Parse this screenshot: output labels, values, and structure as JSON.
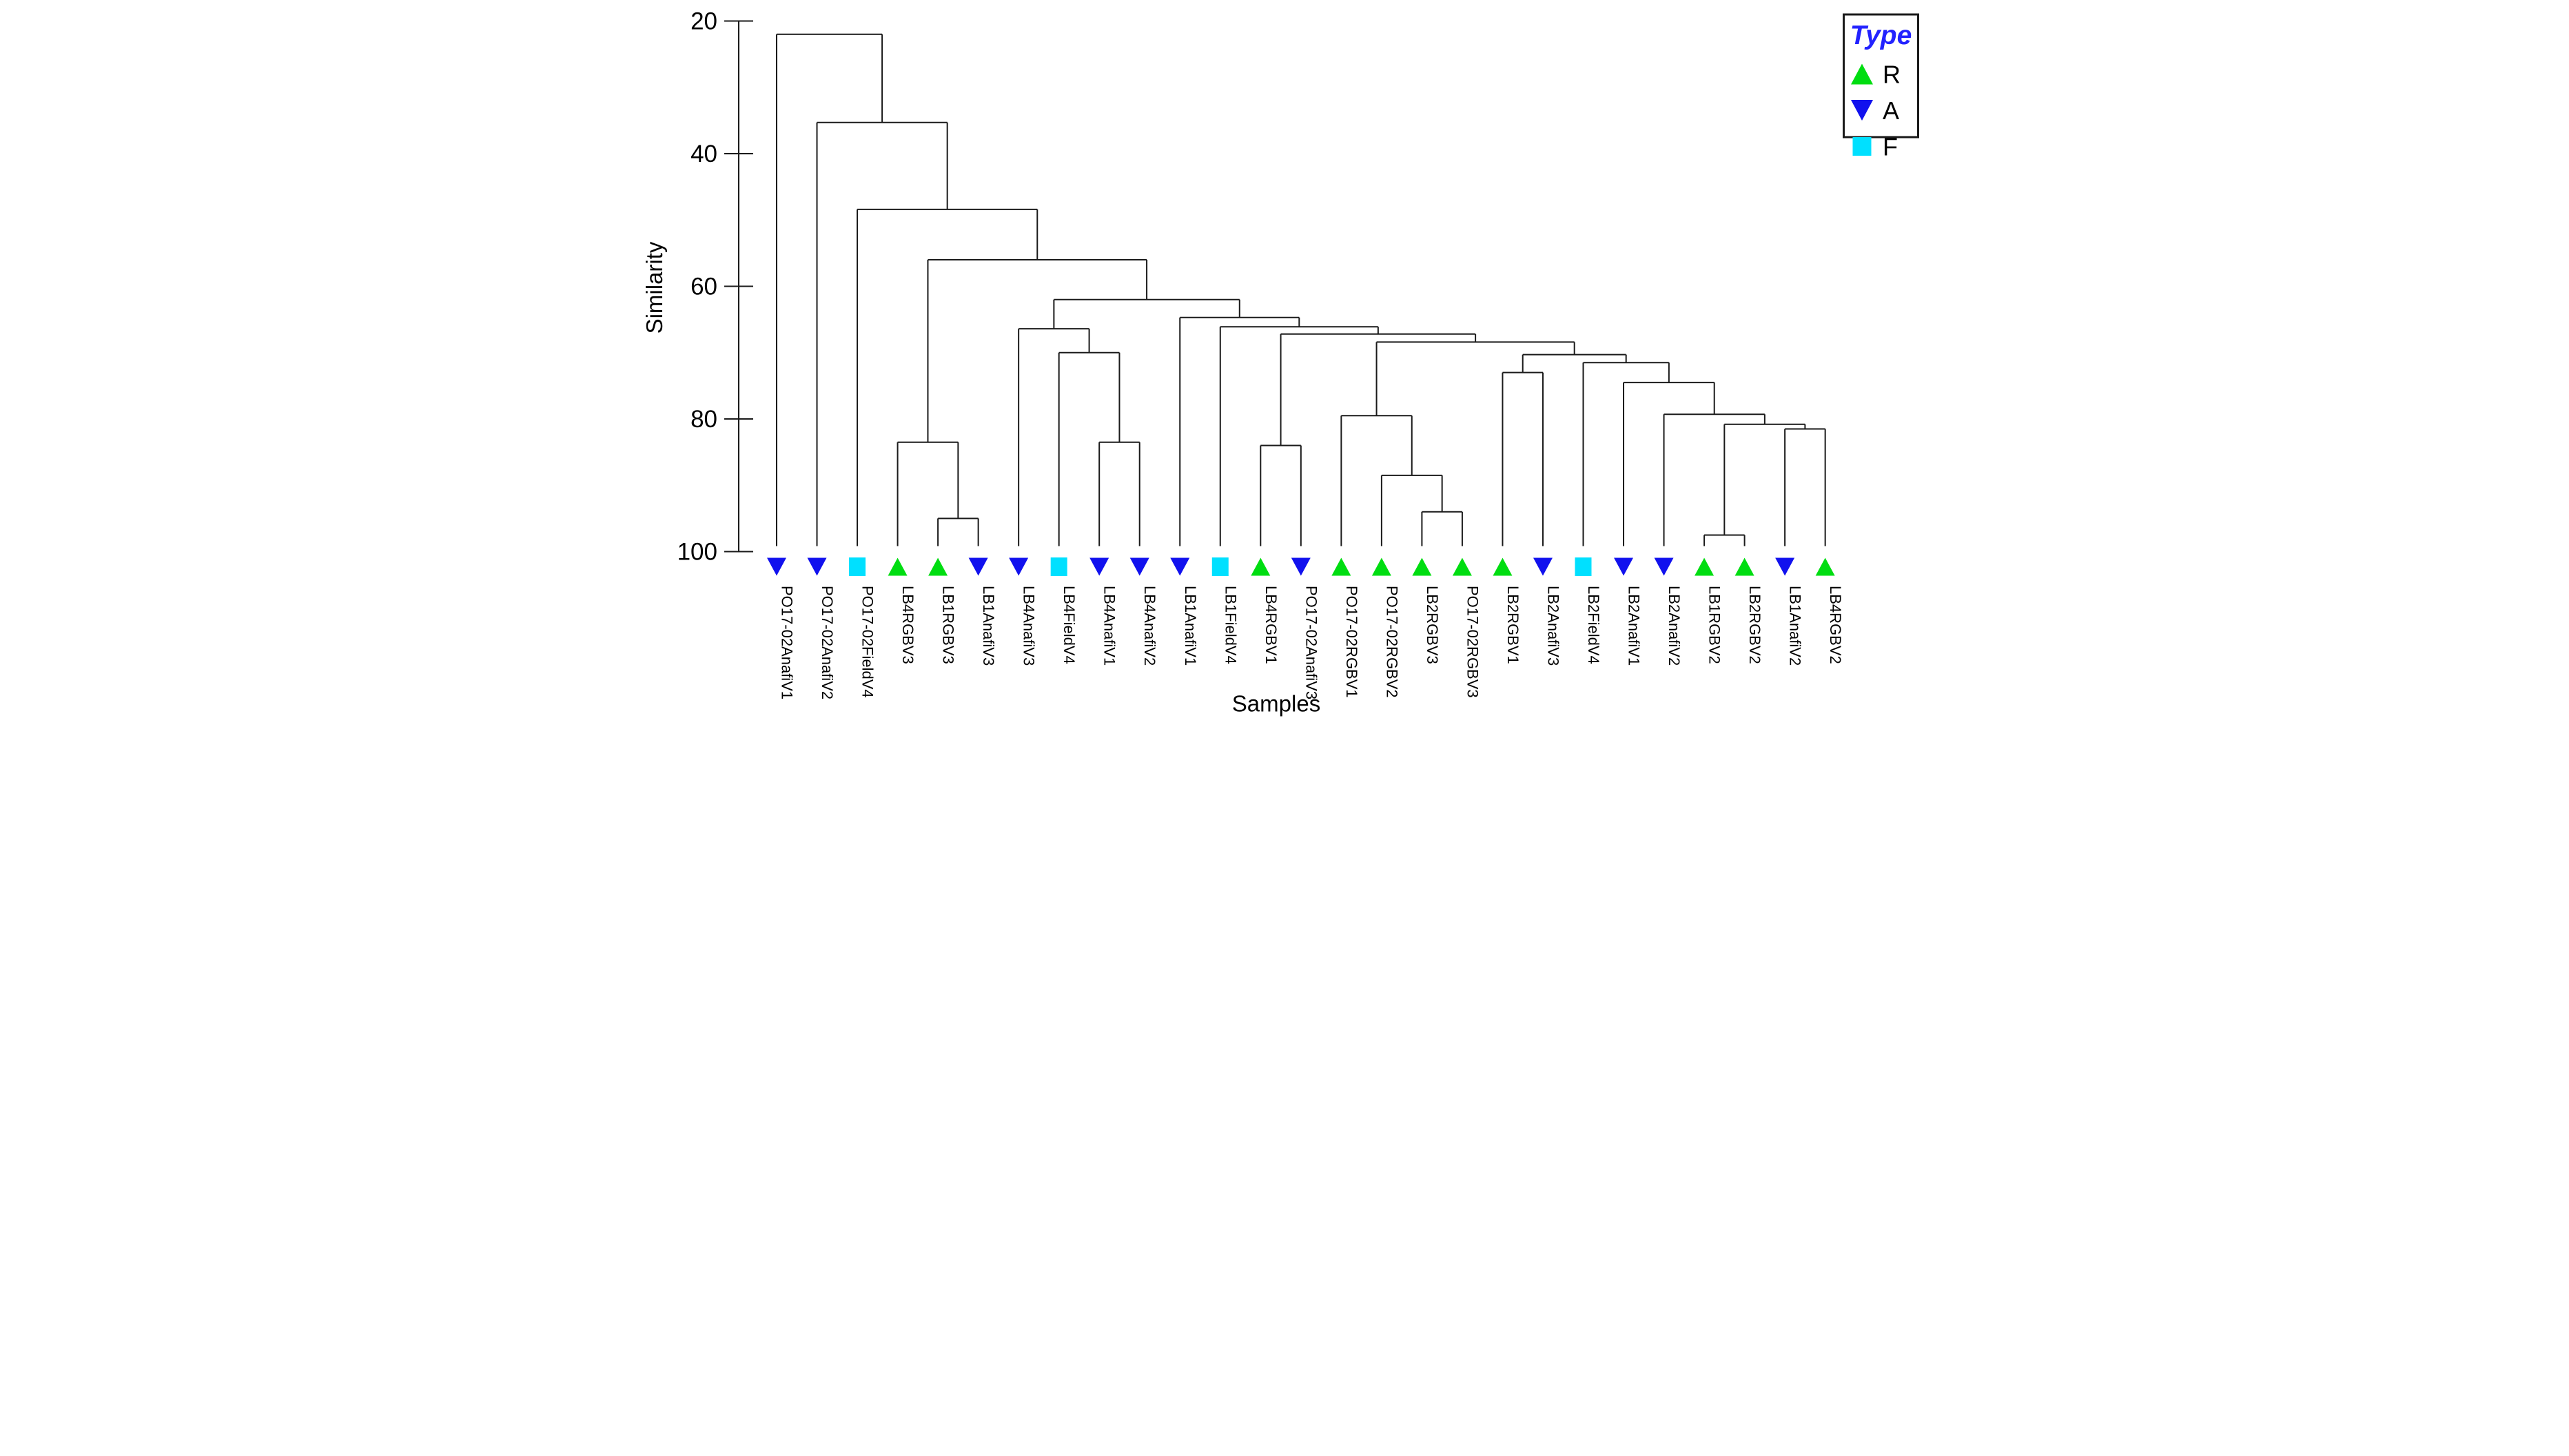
{
  "colors": {
    "line": "#1a1a1a",
    "marker_R": "#00dd11",
    "marker_A": "#1111ee",
    "marker_F": "#00e0ff",
    "legend_title": "#2222ff",
    "text": "#000000"
  },
  "axis": {
    "y": {
      "label": "Similarity",
      "ticks": [
        20,
        40,
        60,
        80,
        100
      ],
      "min": 20,
      "max": 100
    },
    "x": {
      "label": "Samples"
    }
  },
  "legend": {
    "title": "Type",
    "items": [
      {
        "label": "R",
        "marker": "triangle-up",
        "color": "#00dd11"
      },
      {
        "label": "A",
        "marker": "triangle-down",
        "color": "#1111ee"
      },
      {
        "label": "F",
        "marker": "square",
        "color": "#00e0ff"
      }
    ]
  },
  "chart_data": {
    "type": "dendrogram",
    "orientation": "top-down",
    "ylabel": "Similarity",
    "xlabel": "Samples",
    "ylim": [
      20,
      100
    ],
    "grid": false,
    "legend_position": "top-right",
    "leaves": [
      {
        "label": "PO17-02AnafiV1",
        "type": "A"
      },
      {
        "label": "PO17-02AnafiV2",
        "type": "A"
      },
      {
        "label": "PO17-02FieldV4",
        "type": "F"
      },
      {
        "label": "LB4RGBV3",
        "type": "R"
      },
      {
        "label": "LB1RGBV3",
        "type": "R"
      },
      {
        "label": "LB1AnafiV3",
        "type": "A"
      },
      {
        "label": "LB4AnafiV3",
        "type": "A"
      },
      {
        "label": "LB4FieldV4",
        "type": "F"
      },
      {
        "label": "LB4AnafiV1",
        "type": "A"
      },
      {
        "label": "LB4AnafiV2",
        "type": "A"
      },
      {
        "label": "LB1AnafiV1",
        "type": "A"
      },
      {
        "label": "LB1FieldV4",
        "type": "F"
      },
      {
        "label": "LB4RGBV1",
        "type": "R"
      },
      {
        "label": "PO17-02AnafiV3",
        "type": "A"
      },
      {
        "label": "PO17-02RGBV1",
        "type": "R"
      },
      {
        "label": "PO17-02RGBV2",
        "type": "R"
      },
      {
        "label": "LB2RGBV3",
        "type": "R"
      },
      {
        "label": "PO17-02RGBV3",
        "type": "R"
      },
      {
        "label": "LB2RGBV1",
        "type": "R"
      },
      {
        "label": "LB2AnafiV3",
        "type": "A"
      },
      {
        "label": "LB2FieldV4",
        "type": "F"
      },
      {
        "label": "LB2AnafiV1",
        "type": "A"
      },
      {
        "label": "LB2AnafiV2",
        "type": "A"
      },
      {
        "label": "LB1RGBV2",
        "type": "R"
      },
      {
        "label": "LB2RGBV2",
        "type": "R"
      },
      {
        "label": "LB1AnafiV2",
        "type": "A"
      },
      {
        "label": "LB4RGBV2",
        "type": "R"
      }
    ],
    "merges": [
      {
        "id": "n_ee",
        "children": [
          4,
          5
        ],
        "similarity": 95.0
      },
      {
        "id": "n_e",
        "children": [
          3,
          "n_ee"
        ],
        "similarity": 83.5
      },
      {
        "id": "n_j",
        "children": [
          8,
          9
        ],
        "similarity": 83.5
      },
      {
        "id": "n_i",
        "children": [
          7,
          "n_j"
        ],
        "similarity": 70.0
      },
      {
        "id": "n_h",
        "children": [
          6,
          "n_i"
        ],
        "similarity": 66.4
      },
      {
        "id": "n_ll",
        "children": [
          12,
          13
        ],
        "similarity": 84.0
      },
      {
        "id": "n_m",
        "children": [
          16,
          17
        ],
        "similarity": 94.0
      },
      {
        "id": "n_n",
        "children": [
          15,
          "n_m"
        ],
        "similarity": 88.5
      },
      {
        "id": "n_o",
        "children": [
          14,
          "n_n"
        ],
        "similarity": 79.5
      },
      {
        "id": "n_w",
        "children": [
          18,
          19
        ],
        "similarity": 73.0
      },
      {
        "id": "n_u",
        "children": [
          23,
          24
        ],
        "similarity": 97.5
      },
      {
        "id": "n_t",
        "children": [
          25,
          26
        ],
        "similarity": 81.5
      },
      {
        "id": "n_s",
        "children": [
          "n_u",
          "n_t"
        ],
        "similarity": 80.8
      },
      {
        "id": "n_r",
        "children": [
          22,
          "n_s"
        ],
        "similarity": 79.3
      },
      {
        "id": "n_q",
        "children": [
          21,
          "n_r"
        ],
        "similarity": 74.5
      },
      {
        "id": "n_qq",
        "children": [
          20,
          "n_q"
        ],
        "similarity": 71.5
      },
      {
        "id": "n_zz",
        "children": [
          "n_w",
          "n_qq"
        ],
        "similarity": 70.3
      },
      {
        "id": "n_yy",
        "children": [
          "n_o",
          "n_zz"
        ],
        "similarity": 68.4
      },
      {
        "id": "n_kk",
        "children": [
          "n_ll",
          "n_yy"
        ],
        "similarity": 67.2
      },
      {
        "id": "n_k",
        "children": [
          11,
          "n_kk"
        ],
        "similarity": 66.1
      },
      {
        "id": "n_g",
        "children": [
          10,
          "n_k"
        ],
        "similarity": 64.7
      },
      {
        "id": "n_f",
        "children": [
          "n_h",
          "n_g"
        ],
        "similarity": 62.0
      },
      {
        "id": "n_d",
        "children": [
          "n_e",
          "n_f"
        ],
        "similarity": 56.0
      },
      {
        "id": "n_c",
        "children": [
          2,
          "n_d"
        ],
        "similarity": 48.4
      },
      {
        "id": "n_b",
        "children": [
          1,
          "n_c"
        ],
        "similarity": 35.3
      },
      {
        "id": "n_root",
        "children": [
          0,
          "n_b"
        ],
        "similarity": 22.0
      }
    ]
  }
}
